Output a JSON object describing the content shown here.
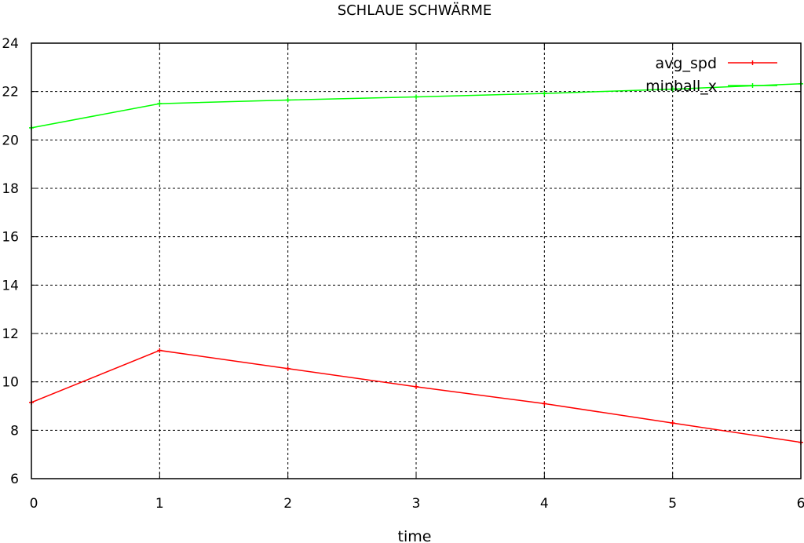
{
  "chart_data": {
    "type": "line",
    "title": "SCHLAUE SCHWÄRME",
    "xlabel": "time",
    "ylabel": "",
    "xlim": [
      0,
      6
    ],
    "ylim": [
      6,
      24
    ],
    "xticks": [
      0,
      1,
      2,
      3,
      4,
      5,
      6
    ],
    "yticks": [
      6,
      8,
      10,
      12,
      14,
      16,
      18,
      20,
      22,
      24
    ],
    "grid": true,
    "legend_position": "top-right",
    "x": [
      0,
      1,
      2,
      3,
      4,
      5,
      6
    ],
    "series": [
      {
        "name": "avg_spd",
        "color": "#ff0000",
        "values": [
          9.15,
          11.3,
          10.55,
          9.8,
          9.1,
          8.3,
          7.5
        ]
      },
      {
        "name": "minball_x",
        "color": "#00ff00",
        "values": [
          20.5,
          21.5,
          21.65,
          21.78,
          21.92,
          22.1,
          22.32
        ]
      }
    ]
  }
}
